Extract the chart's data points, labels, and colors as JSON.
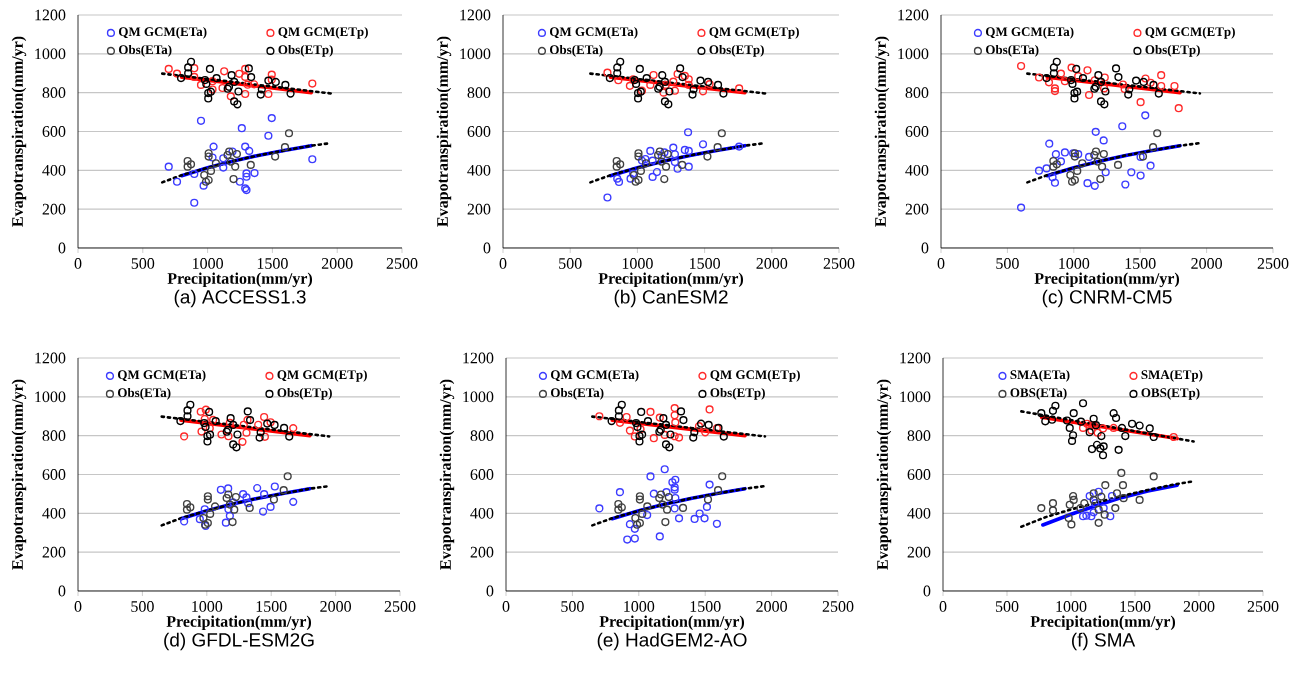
{
  "chart_data": [
    {
      "type": "scatter",
      "title": "(a) ACCESS1.3",
      "xlabel": "Precipitation(mm/yr)",
      "ylabel": "Evapotranspiration(mm/yr)",
      "xlim": [
        0,
        2500
      ],
      "ylim": [
        0,
        1200
      ],
      "xticks": [
        0,
        500,
        1000,
        1500,
        2000,
        2500
      ],
      "yticks": [
        0,
        200,
        400,
        600,
        800,
        1000,
        1200
      ],
      "grid": "y",
      "legend": "top",
      "marker": "circle",
      "series": [
        {
          "name": "QM GCM(ETa)",
          "color": "#3c3cff",
          "x": [
            700,
            764,
            897,
            897,
            949,
            969,
            1046,
            1038,
            1121,
            1121,
            1264,
            1249,
            1290,
            1300,
            1300,
            1290,
            1300,
            1321,
            1362,
            1469,
            1495,
            1808,
            1192
          ],
          "values": [
            419,
            341,
            381,
            233,
            655,
            321,
            522,
            466,
            414,
            462,
            617,
            341,
            522,
            384,
            367,
            307,
            298,
            500,
            386,
            578,
            669,
            457,
            497
          ]
        },
        {
          "name": "QM GCM(ETp)",
          "color": "#ff2a2a",
          "x": [
            700,
            764,
            897,
            897,
            949,
            1038,
            1038,
            1128,
            1115,
            1179,
            1244,
            1290,
            1290,
            1290,
            1308,
            1359,
            1469,
            1495,
            1495,
            1808
          ],
          "values": [
            922,
            898,
            926,
            881,
            840,
            816,
            859,
            910,
            824,
            781,
            897,
            922,
            881,
            793,
            841,
            843,
            793,
            893,
            867,
            847
          ]
        },
        {
          "name": "Obs(ETa)",
          "color": "#404040",
          "x": [
            846,
            872,
            846,
            974,
            987,
            1008,
            1008,
            1008,
            1026,
            1064,
            1154,
            1167,
            1179,
            1200,
            1213,
            1226,
            1333,
            1521,
            1597,
            1628
          ],
          "values": [
            448,
            431,
            419,
            376,
            341,
            350,
            488,
            471,
            397,
            436,
            479,
            497,
            445,
            355,
            419,
            484,
            428,
            471,
            519,
            591
          ]
        },
        {
          "name": "Obs(ETp)",
          "color": "#000000",
          "x": [
            872,
            850,
            850,
            795,
            980,
            1018,
            1069,
            1005,
            1005,
            1025,
            1185,
            1205,
            1155,
            1205,
            1230,
            1238,
            1318,
            1336,
            1469,
            1526,
            1418,
            1410,
            1600,
            1640,
            1165,
            990
          ],
          "values": [
            959,
            930,
            900,
            875,
            865,
            922,
            875,
            798,
            770,
            805,
            890,
            855,
            820,
            755,
            740,
            806,
            925,
            880,
            862,
            855,
            817,
            790,
            840,
            795,
            830,
            845
          ]
        },
        {
          "type": "line",
          "color": "#0000ff",
          "line_style": "solid",
          "marker": "none",
          "x": [
            800,
            1000,
            1200,
            1400,
            1600,
            1800
          ],
          "values": [
            372,
            413,
            448,
            478,
            503,
            527
          ]
        },
        {
          "type": "line",
          "color": "#ff0000",
          "line_style": "solid",
          "marker": "none",
          "x": [
            800,
            1800
          ],
          "values": [
            880,
            800
          ]
        },
        {
          "type": "line",
          "color": "#000000",
          "line_style": "dotted",
          "marker": "none",
          "x": [
            650,
            800,
            1000,
            1200,
            1400,
            1600,
            1800,
            1950
          ],
          "values": [
            338,
            375,
            413,
            448,
            478,
            503,
            527,
            540
          ]
        },
        {
          "type": "line",
          "color": "#000000",
          "line_style": "dotted",
          "marker": "none",
          "x": [
            650,
            1950
          ],
          "values": [
            898,
            796
          ]
        }
      ]
    },
    {
      "type": "scatter",
      "title": "(b) CanESM2",
      "xlabel": "Precipitation(mm/yr)",
      "ylabel": "Evapotranspiration(mm/yr)",
      "xlim": [
        0,
        2500
      ],
      "ylim": [
        0,
        1200
      ],
      "xticks": [
        0,
        500,
        1000,
        1500,
        2000,
        2500
      ],
      "yticks": [
        0,
        200,
        400,
        600,
        800,
        1000,
        1200
      ],
      "grid": "y",
      "legend": "top",
      "marker": "circle",
      "series": [
        {
          "name": "QM GCM(ETa)",
          "color": "#3c3cff",
          "x": [
            777,
            850,
            863,
            949,
            968,
            1034,
            1059,
            1096,
            1113,
            1145,
            1181,
            1201,
            1267,
            1279,
            1299,
            1353,
            1377,
            1382,
            1382,
            1488,
            1757,
            1113,
            1279
          ],
          "values": [
            260,
            357,
            340,
            357,
            383,
            450,
            458,
            500,
            366,
            391,
            475,
            492,
            517,
            483,
            408,
            505,
            596,
            500,
            419,
            534,
            522,
            450,
            443
          ]
        },
        {
          "name": "QM GCM(ETp)",
          "color": "#ff2a2a",
          "x": [
            777,
            858,
            944,
            968,
            1034,
            1096,
            1120,
            1194,
            1211,
            1267,
            1279,
            1299,
            1353,
            1382,
            1382,
            1488,
            1537,
            1757
          ],
          "values": [
            903,
            864,
            835,
            869,
            810,
            840,
            891,
            800,
            840,
            857,
            810,
            896,
            886,
            869,
            840,
            807,
            844,
            822
          ]
        },
        {
          "name": "Obs(ETa)",
          "color": "#404040",
          "x": [
            846,
            872,
            846,
            974,
            987,
            1008,
            1008,
            1008,
            1026,
            1064,
            1154,
            1167,
            1179,
            1200,
            1213,
            1226,
            1333,
            1521,
            1597,
            1628
          ],
          "values": [
            448,
            431,
            419,
            376,
            341,
            350,
            488,
            471,
            397,
            436,
            479,
            497,
            445,
            355,
            419,
            484,
            428,
            471,
            519,
            591
          ]
        },
        {
          "name": "Obs(ETp)",
          "color": "#000000",
          "x": [
            872,
            850,
            850,
            795,
            980,
            1018,
            1069,
            1005,
            1005,
            1025,
            1185,
            1205,
            1155,
            1205,
            1230,
            1238,
            1318,
            1336,
            1469,
            1526,
            1418,
            1410,
            1600,
            1640,
            1165,
            990
          ],
          "values": [
            959,
            930,
            900,
            875,
            865,
            922,
            875,
            798,
            770,
            805,
            890,
            855,
            820,
            755,
            740,
            806,
            925,
            880,
            862,
            855,
            817,
            790,
            840,
            795,
            830,
            845
          ]
        },
        {
          "type": "line",
          "color": "#0000ff",
          "line_style": "solid",
          "marker": "none",
          "x": [
            800,
            1000,
            1200,
            1400,
            1600,
            1800
          ],
          "values": [
            372,
            413,
            448,
            478,
            503,
            527
          ]
        },
        {
          "type": "line",
          "color": "#ff0000",
          "line_style": "solid",
          "marker": "none",
          "x": [
            800,
            1800
          ],
          "values": [
            880,
            800
          ]
        },
        {
          "type": "line",
          "color": "#000000",
          "line_style": "dotted",
          "marker": "none",
          "x": [
            650,
            800,
            1000,
            1200,
            1400,
            1600,
            1800,
            1950
          ],
          "values": [
            338,
            375,
            413,
            448,
            478,
            503,
            527,
            540
          ]
        },
        {
          "type": "line",
          "color": "#000000",
          "line_style": "dotted",
          "marker": "none",
          "x": [
            650,
            1950
          ],
          "values": [
            898,
            796
          ]
        }
      ]
    },
    {
      "type": "scatter",
      "title": "(c) CNRM-CM5",
      "xlabel": "Precipitation(mm/yr)",
      "ylabel": "Evapotranspiration(mm/yr)",
      "xlim": [
        0,
        2500
      ],
      "ylim": [
        0,
        1200
      ],
      "xticks": [
        0,
        500,
        1000,
        1500,
        2000,
        2500
      ],
      "yticks": [
        0,
        200,
        400,
        600,
        800,
        1000,
        1200
      ],
      "grid": "y",
      "legend": "top",
      "marker": "circle",
      "series": [
        {
          "name": "QM GCM(ETa)",
          "color": "#3c3cff",
          "x": [
            603,
            738,
            795,
            815,
            840,
            858,
            865,
            903,
            933,
            995,
            1033,
            1103,
            1115,
            1158,
            1165,
            1225,
            1240,
            1365,
            1388,
            1433,
            1503,
            1538,
            1578,
            1503
          ],
          "values": [
            208,
            398,
            410,
            537,
            364,
            336,
            483,
            446,
            492,
            488,
            483,
            334,
            469,
            320,
            598,
            554,
            390,
            627,
            327,
            390,
            373,
            683,
            424,
            469
          ]
        },
        {
          "name": "QM GCM(ETp)",
          "color": "#ff2a2a",
          "x": [
            603,
            738,
            813,
            858,
            858,
            903,
            933,
            983,
            1033,
            1103,
            1115,
            1158,
            1233,
            1370,
            1383,
            1503,
            1540,
            1578,
            1658,
            1658,
            1758,
            1790,
            1228
          ],
          "values": [
            937,
            878,
            853,
            822,
            808,
            898,
            859,
            929,
            885,
            915,
            788,
            864,
            878,
            842,
            819,
            751,
            873,
            851,
            890,
            834,
            834,
            720,
            822
          ]
        },
        {
          "name": "Obs(ETa)",
          "color": "#404040",
          "x": [
            846,
            872,
            846,
            974,
            987,
            1008,
            1008,
            1008,
            1026,
            1064,
            1154,
            1167,
            1179,
            1200,
            1213,
            1226,
            1333,
            1521,
            1597,
            1628
          ],
          "values": [
            448,
            431,
            419,
            376,
            341,
            350,
            488,
            471,
            397,
            436,
            479,
            497,
            445,
            355,
            419,
            484,
            428,
            471,
            519,
            591
          ]
        },
        {
          "name": "Obs(ETp)",
          "color": "#000000",
          "x": [
            872,
            850,
            850,
            795,
            980,
            1018,
            1069,
            1005,
            1005,
            1025,
            1185,
            1205,
            1155,
            1205,
            1230,
            1238,
            1318,
            1336,
            1469,
            1526,
            1418,
            1410,
            1600,
            1640,
            1165,
            990
          ],
          "values": [
            959,
            930,
            900,
            875,
            865,
            922,
            875,
            798,
            770,
            805,
            890,
            855,
            820,
            755,
            740,
            806,
            925,
            880,
            862,
            855,
            817,
            790,
            840,
            795,
            830,
            845
          ]
        },
        {
          "type": "line",
          "color": "#0000ff",
          "line_style": "solid",
          "marker": "none",
          "x": [
            800,
            1000,
            1200,
            1400,
            1600,
            1800
          ],
          "values": [
            372,
            413,
            448,
            478,
            503,
            527
          ]
        },
        {
          "type": "line",
          "color": "#ff0000",
          "line_style": "solid",
          "marker": "none",
          "x": [
            800,
            1800
          ],
          "values": [
            880,
            800
          ]
        },
        {
          "type": "line",
          "color": "#000000",
          "line_style": "dotted",
          "marker": "none",
          "x": [
            650,
            800,
            1000,
            1200,
            1400,
            1600,
            1800,
            1950
          ],
          "values": [
            338,
            375,
            413,
            448,
            478,
            503,
            527,
            540
          ]
        },
        {
          "type": "line",
          "color": "#000000",
          "line_style": "dotted",
          "marker": "none",
          "x": [
            650,
            1950
          ],
          "values": [
            898,
            796
          ]
        }
      ]
    },
    {
      "type": "scatter",
      "title": "(d) GFDL-ESM2G",
      "xlabel": "Precipitation(mm/yr)",
      "ylabel": "Evapotranspiration(mm/yr)",
      "xlim": [
        0,
        2500
      ],
      "ylim": [
        0,
        1200
      ],
      "xticks": [
        0,
        500,
        1000,
        1500,
        2000,
        2500
      ],
      "yticks": [
        0,
        200,
        400,
        600,
        800,
        1000,
        1200
      ],
      "grid": "y",
      "legend": "top",
      "marker": "circle",
      "series": [
        {
          "name": "QM GCM(ETa)",
          "color": "#3c3cff",
          "x": [
            824,
            946,
            984,
            990,
            1109,
            1148,
            1166,
            1179,
            1168,
            1205,
            1282,
            1308,
            1321,
            1391,
            1437,
            1445,
            1495,
            1528,
            1671
          ],
          "values": [
            358,
            370,
            421,
            335,
            521,
            352,
            528,
            387,
            421,
            456,
            499,
            482,
            452,
            530,
            409,
            499,
            433,
            538,
            459
          ]
        },
        {
          "name": "QM GCM(ETp)",
          "color": "#ff2a2a",
          "x": [
            824,
            953,
            959,
            992,
            984,
            1023,
            1049,
            1114,
            1168,
            1179,
            1277,
            1287,
            1308,
            1316,
            1399,
            1445,
            1451,
            1495,
            1671
          ],
          "values": [
            796,
            923,
            821,
            934,
            886,
            838,
            881,
            806,
            797,
            866,
            768,
            856,
            815,
            881,
            856,
            896,
            794,
            869,
            839
          ]
        },
        {
          "name": "Obs(ETa)",
          "color": "#404040",
          "x": [
            846,
            872,
            846,
            974,
            987,
            1008,
            1008,
            1008,
            1026,
            1064,
            1154,
            1167,
            1179,
            1200,
            1213,
            1226,
            1333,
            1521,
            1597,
            1628
          ],
          "values": [
            448,
            431,
            419,
            376,
            341,
            350,
            488,
            471,
            397,
            436,
            479,
            497,
            445,
            355,
            419,
            484,
            428,
            471,
            519,
            591
          ]
        },
        {
          "name": "Obs(ETp)",
          "color": "#000000",
          "x": [
            872,
            850,
            850,
            795,
            980,
            1018,
            1069,
            1005,
            1005,
            1025,
            1185,
            1205,
            1155,
            1205,
            1230,
            1238,
            1318,
            1336,
            1469,
            1526,
            1418,
            1410,
            1600,
            1640,
            1165,
            990
          ],
          "values": [
            959,
            930,
            900,
            875,
            865,
            922,
            875,
            798,
            770,
            805,
            890,
            855,
            820,
            755,
            740,
            806,
            925,
            880,
            862,
            855,
            817,
            790,
            840,
            795,
            830,
            845
          ]
        },
        {
          "type": "line",
          "color": "#0000ff",
          "line_style": "solid",
          "marker": "none",
          "x": [
            800,
            1000,
            1200,
            1400,
            1600,
            1800
          ],
          "values": [
            372,
            413,
            448,
            478,
            503,
            527
          ]
        },
        {
          "type": "line",
          "color": "#ff0000",
          "line_style": "solid",
          "marker": "none",
          "x": [
            800,
            1800
          ],
          "values": [
            880,
            800
          ]
        },
        {
          "type": "line",
          "color": "#000000",
          "line_style": "dotted",
          "marker": "none",
          "x": [
            650,
            800,
            1000,
            1200,
            1400,
            1600,
            1800,
            1950
          ],
          "values": [
            338,
            375,
            413,
            448,
            478,
            503,
            527,
            540
          ]
        },
        {
          "type": "line",
          "color": "#000000",
          "line_style": "dotted",
          "marker": "none",
          "x": [
            650,
            1950
          ],
          "values": [
            898,
            796
          ]
        }
      ]
    },
    {
      "type": "scatter",
      "title": "(e) HadGEM2-AO",
      "xlabel": "Precipitation(mm/yr)",
      "ylabel": "Evapotranspiration(mm/yr)",
      "xlim": [
        0,
        2500
      ],
      "ylim": [
        0,
        1200
      ],
      "xticks": [
        0,
        500,
        1000,
        1500,
        2000,
        2500
      ],
      "yticks": [
        0,
        200,
        400,
        600,
        800,
        1000,
        1200
      ],
      "grid": "y",
      "legend": "top",
      "marker": "circle",
      "series": [
        {
          "name": "QM GCM(ETa)",
          "color": "#3c3cff",
          "x": [
            703,
            858,
            933,
            913,
            970,
            970,
            1063,
            1088,
            1113,
            1158,
            1195,
            1208,
            1253,
            1270,
            1275,
            1270,
            1275,
            1303,
            1420,
            1458,
            1495,
            1513,
            1533,
            1588,
            1270
          ],
          "values": [
            425,
            509,
            344,
            265,
            270,
            320,
            391,
            590,
            501,
            281,
            627,
            509,
            560,
            534,
            573,
            425,
            479,
            374,
            371,
            399,
            374,
            433,
            548,
            346,
            522
          ]
        },
        {
          "name": "QM GCM(ETp)",
          "color": "#ff2a2a",
          "x": [
            703,
            858,
            908,
            933,
            970,
            1013,
            1088,
            1113,
            1158,
            1195,
            1270,
            1270,
            1275,
            1303,
            1270,
            1453,
            1500,
            1533,
            1588
          ],
          "values": [
            900,
            866,
            896,
            826,
            796,
            833,
            922,
            787,
            893,
            804,
            942,
            905,
            868,
            790,
            797,
            849,
            817,
            935,
            839
          ]
        },
        {
          "name": "Obs(ETa)",
          "color": "#404040",
          "x": [
            846,
            872,
            846,
            974,
            987,
            1008,
            1008,
            1008,
            1026,
            1064,
            1154,
            1167,
            1179,
            1200,
            1213,
            1226,
            1333,
            1521,
            1597,
            1628
          ],
          "values": [
            448,
            431,
            419,
            376,
            341,
            350,
            488,
            471,
            397,
            436,
            479,
            497,
            445,
            355,
            419,
            484,
            428,
            471,
            519,
            591
          ]
        },
        {
          "name": "Obs(ETp)",
          "color": "#000000",
          "x": [
            872,
            850,
            850,
            795,
            980,
            1018,
            1069,
            1005,
            1005,
            1025,
            1185,
            1205,
            1155,
            1205,
            1230,
            1238,
            1318,
            1336,
            1469,
            1526,
            1418,
            1410,
            1600,
            1640,
            1165,
            990
          ],
          "values": [
            959,
            930,
            900,
            875,
            865,
            922,
            875,
            798,
            770,
            805,
            890,
            855,
            820,
            755,
            740,
            806,
            925,
            880,
            862,
            855,
            817,
            790,
            840,
            795,
            830,
            845
          ]
        },
        {
          "type": "line",
          "color": "#0000ff",
          "line_style": "solid",
          "marker": "none",
          "x": [
            800,
            1000,
            1200,
            1400,
            1600,
            1800
          ],
          "values": [
            372,
            413,
            448,
            478,
            503,
            527
          ]
        },
        {
          "type": "line",
          "color": "#ff0000",
          "line_style": "solid",
          "marker": "none",
          "x": [
            800,
            1800
          ],
          "values": [
            880,
            800
          ]
        },
        {
          "type": "line",
          "color": "#000000",
          "line_style": "dotted",
          "marker": "none",
          "x": [
            650,
            800,
            1000,
            1200,
            1400,
            1600,
            1800,
            1950
          ],
          "values": [
            338,
            375,
            413,
            448,
            478,
            503,
            527,
            540
          ]
        },
        {
          "type": "line",
          "color": "#000000",
          "line_style": "dotted",
          "marker": "none",
          "x": [
            650,
            1950
          ],
          "values": [
            898,
            796
          ]
        }
      ]
    },
    {
      "type": "scatter",
      "title": "(f) SMA",
      "xlabel": "Precipitation(mm/yr)",
      "ylabel": "Evapotranspiration(mm/yr)",
      "xlim": [
        0,
        2500
      ],
      "ylim": [
        0,
        1200
      ],
      "xticks": [
        0,
        500,
        1000,
        1500,
        2000,
        2500
      ],
      "yticks": [
        0,
        200,
        400,
        600,
        800,
        1000,
        1200
      ],
      "grid": "y",
      "legend": "top",
      "marker": "circle",
      "series": [
        {
          "name": "SMA(ETa)",
          "color": "#3c3cff",
          "x": [
            1094,
            1120,
            1159,
            1177,
            1146,
            1216,
            1255,
            1307,
            1320,
            1190
          ],
          "values": [
            385,
            388,
            385,
            405,
            489,
            511,
            427,
            385,
            489,
            452
          ]
        },
        {
          "name": "SMA(ETp)",
          "color": "#ff2a2a",
          "x": [
            1094,
            1125,
            1177,
            1208,
            1250,
            1333,
            1159,
            1802
          ],
          "values": [
            840,
            861,
            854,
            815,
            837,
            840,
            827,
            793
          ]
        },
        {
          "name": "OBS(ETa)",
          "color": "#404040",
          "x": [
            768,
            859,
            859,
            982,
            1003,
            1016,
            1021,
            990,
            1073,
            1104,
            1177,
            1177,
            1216,
            1216,
            1263,
            1268,
            1346,
            1359,
            1393,
            1406,
            1411,
            1536,
            1646,
            1237
          ],
          "values": [
            427,
            452,
            415,
            376,
            343,
            489,
            469,
            444,
            427,
            452,
            503,
            469,
            419,
            351,
            393,
            545,
            427,
            503,
            608,
            545,
            478,
            469,
            590,
            486
          ]
        },
        {
          "name": "OBS(ETp)",
          "color": "#000000",
          "x": [
            768,
            859,
            878,
            799,
            852,
            969,
            990,
            1016,
            1008,
            1021,
            1094,
            1078,
            1177,
            1164,
            1203,
            1229,
            1250,
            1255,
            1237,
            1195,
            1333,
            1352,
            1372,
            1424,
            1477,
            1536,
            1615,
            1646,
            1398,
            1146
          ],
          "values": [
            916,
            928,
            954,
            874,
            882,
            878,
            840,
            802,
            773,
            916,
            967,
            872,
            887,
            731,
            753,
            734,
            699,
            745,
            798,
            854,
            916,
            891,
            727,
            798,
            861,
            852,
            837,
            793,
            840,
            818
          ]
        },
        {
          "type": "line",
          "color": "#0000ff",
          "line_style": "solid",
          "marker": "none",
          "x": [
            780,
            1000,
            1200,
            1400,
            1600,
            1830
          ],
          "values": [
            340,
            395,
            440,
            482,
            515,
            545
          ]
        },
        {
          "type": "line",
          "color": "#ff0000",
          "line_style": "solid",
          "marker": "none",
          "x": [
            770,
            1830
          ],
          "values": [
            895,
            785
          ]
        },
        {
          "type": "line",
          "color": "#000000",
          "line_style": "dotted",
          "marker": "none",
          "x": [
            612,
            800,
            1000,
            1200,
            1400,
            1600,
            1800,
            1958
          ],
          "values": [
            331,
            380,
            420,
            455,
            490,
            520,
            548,
            565
          ]
        },
        {
          "type": "line",
          "color": "#000000",
          "line_style": "dotted",
          "marker": "none",
          "x": [
            612,
            1958
          ],
          "values": [
            925,
            770
          ]
        }
      ]
    }
  ]
}
